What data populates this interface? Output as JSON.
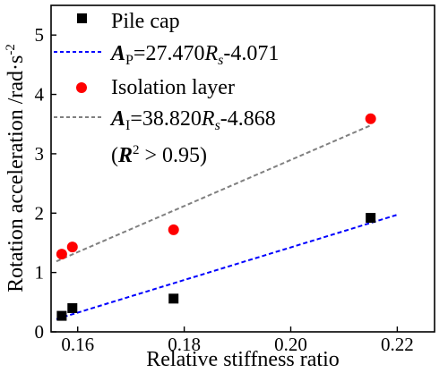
{
  "chart_data": {
    "type": "scatter",
    "xlabel": "Relative stiffness ratio",
    "ylabel": "Rotation acceleration /rad·s",
    "ylabel_superscript": "-2",
    "xlim": [
      0.155,
      0.227
    ],
    "ylim": [
      0,
      5.5
    ],
    "x_ticks": [
      "0.16",
      "0.18",
      "0.20",
      "0.22"
    ],
    "y_ticks": [
      "0",
      "1",
      "2",
      "3",
      "4",
      "5"
    ],
    "grid": false,
    "legend_position": "top-left",
    "series": [
      {
        "name": "Pile cap",
        "marker": "square",
        "color": "#000000",
        "x": [
          0.157,
          0.159,
          0.178,
          0.215
        ],
        "y": [
          0.27,
          0.4,
          0.56,
          1.92
        ]
      },
      {
        "name": "Isolation layer",
        "marker": "circle",
        "color": "#ff0000",
        "x": [
          0.157,
          0.159,
          0.178,
          0.215
        ],
        "y": [
          1.31,
          1.43,
          1.72,
          3.59
        ]
      }
    ],
    "fits": [
      {
        "label_var": "A",
        "label_sub": "P",
        "equation_rest": "=27.470",
        "equation_var": "R",
        "equation_var_sub": "s",
        "equation_tail": "-4.071",
        "slope": 27.47,
        "intercept": -4.071,
        "x_range": [
          0.156,
          0.22
        ],
        "color": "#0000ff"
      },
      {
        "label_var": "A",
        "label_sub": "I",
        "equation_rest": "=38.820",
        "equation_var": "R",
        "equation_var_sub": "s",
        "equation_tail": "-4.868",
        "slope": 38.82,
        "intercept": -4.868,
        "x_range": [
          0.156,
          0.215
        ],
        "color": "#808080"
      }
    ],
    "annotation": {
      "open": "(",
      "var": "R",
      "sup": "2",
      "rest": " > 0.95)"
    }
  }
}
